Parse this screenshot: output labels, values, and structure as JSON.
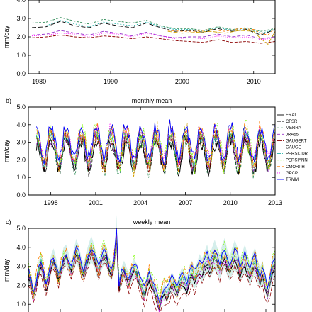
{
  "chart_data": [
    {
      "type": "line",
      "panel_label": "",
      "title": "",
      "ylabel": "mm/day",
      "xlim": [
        1978.5,
        2013
      ],
      "ylim": [
        0,
        4.0
      ],
      "x_ticks": [
        "1980",
        "1990",
        "2000",
        "2010"
      ],
      "y_ticks": [
        "0.0",
        "1.0",
        "2.0",
        "3.0",
        "4.0"
      ],
      "series": [
        {
          "color": "#000000",
          "dash": "6,3",
          "x": [
            1979,
            1981,
            1983,
            1985,
            1987,
            1989,
            1991,
            1993,
            1995,
            1997,
            1999,
            2001,
            2003,
            2005,
            2007,
            2009,
            2011,
            2013
          ],
          "y": [
            2.5,
            2.55,
            2.85,
            2.6,
            2.5,
            2.75,
            2.6,
            2.5,
            2.75,
            2.5,
            2.3,
            2.35,
            2.25,
            2.45,
            2.3,
            2.4,
            2.1,
            2.4
          ]
        },
        {
          "color": "#2e8b57",
          "dash": "3,2",
          "x": [
            1979,
            1981,
            1983,
            1985,
            1987,
            1989,
            1991,
            1993,
            1995,
            1997,
            1999,
            2001,
            2003,
            2005,
            2007,
            2009,
            2011,
            2013
          ],
          "y": [
            2.75,
            2.8,
            3.05,
            2.85,
            2.7,
            2.95,
            2.85,
            2.75,
            2.9,
            2.6,
            2.45,
            2.45,
            2.35,
            2.55,
            2.4,
            2.5,
            2.3,
            2.45
          ]
        },
        {
          "color": "#9932cc",
          "dash": "5,2",
          "x": [
            1979,
            1981,
            1983,
            1985,
            1987,
            1989,
            1991,
            1993,
            1995,
            1997,
            1999,
            2001,
            2003,
            2005,
            2007,
            2009,
            2011,
            2013
          ],
          "y": [
            2.1,
            2.15,
            2.35,
            2.2,
            2.1,
            2.3,
            2.2,
            2.05,
            2.25,
            2.05,
            1.95,
            2.0,
            2.0,
            2.15,
            2.0,
            2.1,
            1.9,
            2.0
          ]
        },
        {
          "color": "#8b0000",
          "dash": "4,2",
          "x": [
            1979,
            1981,
            1983,
            1985,
            1987,
            1989,
            1991,
            1993,
            1995,
            1997,
            1999,
            2001,
            2003,
            2005,
            2007,
            2009,
            2011,
            2013
          ],
          "y": [
            1.95,
            2.0,
            2.1,
            2.0,
            1.95,
            2.05,
            2.0,
            1.9,
            2.0,
            1.9,
            1.8,
            1.75,
            1.7,
            1.85,
            1.7,
            1.75,
            1.65,
            1.75
          ]
        },
        {
          "color": "#20b2aa",
          "dash": "2,2",
          "x": [
            1979,
            1981,
            1983,
            1985,
            1987,
            1989,
            1991,
            1993,
            1995,
            1997,
            1999,
            2001,
            2003,
            2005,
            2007,
            2009,
            2011,
            2013
          ],
          "y": [
            2.6,
            2.6,
            2.9,
            2.7,
            2.55,
            2.8,
            2.7,
            2.6,
            2.8,
            2.55,
            2.4,
            2.4,
            2.3,
            2.5,
            2.35,
            2.45,
            2.2,
            2.4
          ]
        },
        {
          "color": "#d2a000",
          "dash": "6,2",
          "x": [
            1998,
            2000,
            2002,
            2004,
            2006,
            2008,
            2010,
            2011,
            2012,
            2013
          ],
          "y": [
            2.3,
            2.2,
            2.25,
            2.3,
            2.2,
            2.35,
            2.3,
            1.9,
            1.6,
            2.3
          ]
        },
        {
          "color": "#ff7f00",
          "dash": "3,3",
          "x": [
            1998,
            2000,
            2002,
            2004,
            2006,
            2008,
            2010,
            2011,
            2012,
            2013
          ],
          "y": [
            2.35,
            2.3,
            2.3,
            2.4,
            2.3,
            2.45,
            2.4,
            2.2,
            2.1,
            2.5
          ]
        },
        {
          "color": "#ff00ff",
          "dash": "1,2",
          "x": [
            1979,
            1981,
            1983,
            1985,
            1987,
            1989,
            1991,
            1993,
            1995,
            1997,
            1999,
            2001,
            2003,
            2005,
            2007,
            2009,
            2011,
            2013
          ],
          "y": [
            2.05,
            2.1,
            2.2,
            2.15,
            2.0,
            2.2,
            2.15,
            2.0,
            2.2,
            2.05,
            1.9,
            1.95,
            1.9,
            2.05,
            1.95,
            2.0,
            1.85,
            1.95
          ]
        }
      ]
    },
    {
      "type": "line",
      "panel_label": "b)",
      "title": "monthly mean",
      "ylabel": "mm/day",
      "xlim": [
        1996.5,
        2013
      ],
      "ylim": [
        0,
        5.0
      ],
      "x_ticks": [
        "1998",
        "2001",
        "2004",
        "2007",
        "2010",
        "2013"
      ],
      "y_ticks": [
        "0.0",
        "1.0",
        "2.0",
        "3.0",
        "4.0",
        "5.0"
      ],
      "legend": [
        "ERAI",
        "CFSR",
        "MERRA",
        "JRA55",
        "GAUGERT",
        "GAUGE",
        "PERSICDR",
        "PERSIANN",
        "CMORPH",
        "GPCP",
        "TRMM"
      ],
      "legend_position": "right",
      "series_colors": [
        "#000000",
        "#000000",
        "#2e8b57",
        "#9932cc",
        "#8b0000",
        "#d2a000",
        "#20b2aa",
        "#7cfc00",
        "#ff7f00",
        "#ff00ff",
        "#0000ff"
      ],
      "seasonal_mean": [
        3.3,
        3.4,
        3.1,
        2.7,
        2.3,
        1.9,
        1.7,
        1.8,
        2.1,
        2.6,
        3.2,
        3.5
      ],
      "note": "",
      "x": [],
      "series": []
    },
    {
      "type": "line",
      "panel_label": "c)",
      "title": "weekly mean",
      "ylabel": "mm/day",
      "xlim": [
        0,
        100
      ],
      "ylim": [
        0.3,
        5.0
      ],
      "x_ticks": [],
      "y_ticks": [
        "1.0",
        "2.0",
        "3.0",
        "4.0",
        "5.0"
      ],
      "ensemble_mean": [
        2.6,
        2.2,
        1.5,
        2.0,
        2.8,
        3.2,
        2.6,
        2.0,
        2.4,
        3.1,
        3.4,
        3.0,
        2.5,
        2.9,
        3.4,
        3.6,
        3.2,
        2.8,
        3.3,
        3.8,
        3.5,
        3.0,
        2.7,
        3.2,
        3.6,
        3.9,
        3.6,
        3.1,
        2.8,
        3.3,
        3.7,
        3.5,
        3.0,
        2.7,
        3.1,
        4.8,
        2.0,
        2.5,
        2.8,
        2.5,
        2.2,
        2.6,
        2.9,
        2.7,
        2.3,
        2.0,
        1.6,
        2.1,
        2.4,
        2.2,
        1.8,
        1.5,
        0.9,
        1.4,
        1.7,
        1.5,
        1.9,
        2.2,
        2.0,
        1.7,
        2.1,
        2.4,
        2.2,
        2.0,
        2.5,
        2.7,
        2.4,
        2.6,
        3.0,
        2.8,
        3.1,
        3.4,
        3.0,
        3.3,
        3.6,
        3.3,
        3.0,
        3.4,
        3.7,
        3.2,
        2.9,
        3.3,
        3.6,
        3.3,
        2.8,
        3.1,
        3.4,
        3.0,
        2.6,
        3.0,
        3.3,
        2.8,
        2.4,
        2.7,
        2.2,
        1.6,
        2.3,
        2.9,
        3.2
      ],
      "spread": [
        0.3,
        0.4,
        0.3,
        0.35,
        0.4,
        0.5,
        0.45,
        0.3,
        0.4,
        0.5,
        0.55,
        0.45,
        0.4,
        0.5,
        0.6,
        0.55,
        0.5,
        0.45,
        0.55,
        0.65,
        0.6,
        0.5,
        0.45,
        0.55,
        0.6,
        0.7,
        0.6,
        0.55,
        0.5,
        0.55,
        0.6,
        0.55,
        0.5,
        0.45,
        0.5,
        0.9,
        0.4,
        0.45,
        0.5,
        0.45,
        0.4,
        0.45,
        0.5,
        0.45,
        0.4,
        0.4,
        0.35,
        0.4,
        0.45,
        0.4,
        0.35,
        0.35,
        0.3,
        0.35,
        0.4,
        0.4,
        0.45,
        0.5,
        0.45,
        0.4,
        0.5,
        0.55,
        0.5,
        0.5,
        0.55,
        0.6,
        0.55,
        0.6,
        0.65,
        0.6,
        0.7,
        0.75,
        0.65,
        0.7,
        0.8,
        0.7,
        0.65,
        0.75,
        0.8,
        0.7,
        0.65,
        0.7,
        0.8,
        0.7,
        0.6,
        0.65,
        0.75,
        0.65,
        0.6,
        0.65,
        0.7,
        0.6,
        0.55,
        0.6,
        0.5,
        0.4,
        0.5,
        0.6,
        0.65
      ],
      "series_colors": [
        "#000000",
        "#000000",
        "#2e8b57",
        "#9932cc",
        "#8b0000",
        "#d2a000",
        "#20b2aa",
        "#7cfc00",
        "#ff7f00",
        "#ff00ff",
        "#0000ff"
      ]
    }
  ],
  "colors": {
    "frame": "#000000",
    "background": "#ffffff"
  }
}
